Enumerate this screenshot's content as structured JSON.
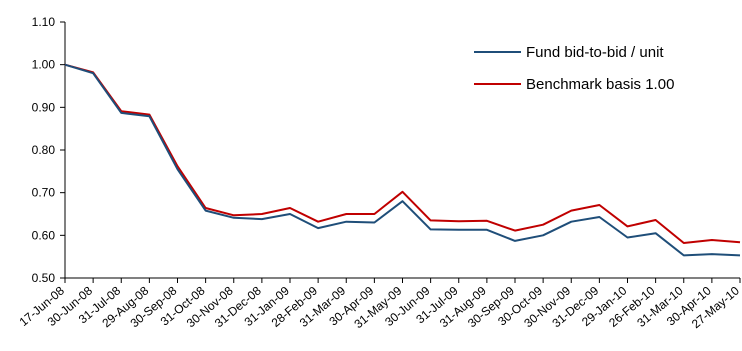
{
  "chart_data": {
    "type": "line",
    "title": "",
    "xlabel": "",
    "ylabel": "",
    "ylim": [
      0.5,
      1.1
    ],
    "y_ticks": [
      "0.50",
      "0.60",
      "0.70",
      "0.80",
      "0.90",
      "1.00",
      "1.10"
    ],
    "grid": false,
    "legend_position": "top-right",
    "x": [
      "17-Jun-08",
      "30-Jun-08",
      "31-Jul-08",
      "29-Aug-08",
      "30-Sep-08",
      "31-Oct-08",
      "30-Nov-08",
      "31-Dec-08",
      "31-Jan-09",
      "28-Feb-09",
      "31-Mar-09",
      "30-Apr-09",
      "31-May-09",
      "30-Jun-09",
      "31-Jul-09",
      "31-Aug-09",
      "30-Sep-09",
      "30-Oct-09",
      "30-Nov-09",
      "31-Dec-09",
      "29-Jan-10",
      "26-Feb-10",
      "31-Mar-10",
      "30-Apr-10",
      "27-May-10"
    ],
    "series": [
      {
        "name": "Fund bid-to-bid / unit",
        "color": "#1f4e79",
        "values": [
          1.0,
          0.98,
          0.887,
          0.879,
          0.755,
          0.658,
          0.641,
          0.638,
          0.65,
          0.617,
          0.632,
          0.63,
          0.68,
          0.614,
          0.613,
          0.613,
          0.587,
          0.6,
          0.632,
          0.643,
          0.595,
          0.605,
          0.553,
          0.556,
          0.553
        ]
      },
      {
        "name": "Benchmark basis 1.00",
        "color": "#c00000",
        "values": [
          1.0,
          0.982,
          0.891,
          0.883,
          0.762,
          0.664,
          0.647,
          0.65,
          0.664,
          0.632,
          0.65,
          0.65,
          0.702,
          0.635,
          0.633,
          0.634,
          0.611,
          0.625,
          0.658,
          0.671,
          0.621,
          0.636,
          0.582,
          0.589,
          0.584
        ]
      }
    ]
  }
}
